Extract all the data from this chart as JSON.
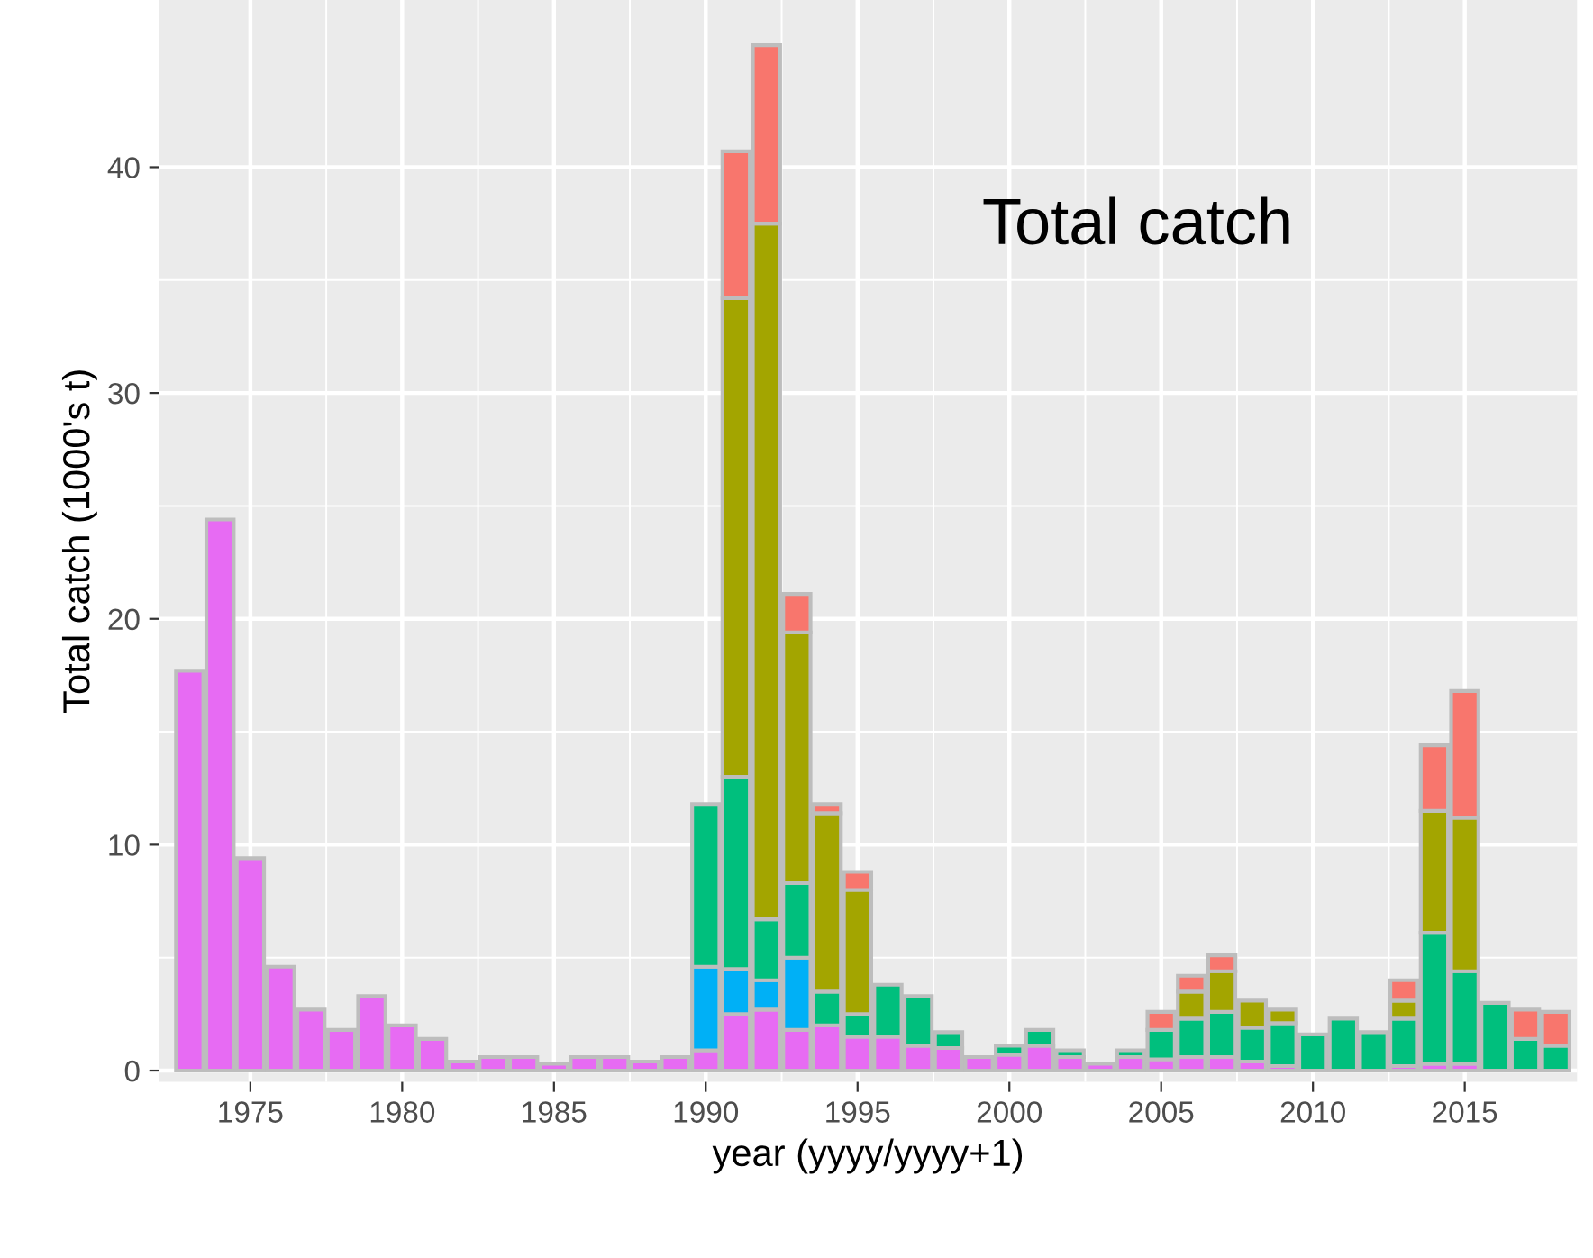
{
  "chart_data": {
    "type": "bar",
    "stacked": true,
    "xlabel": "year (yyyy/yyyy+1)",
    "ylabel": "Total catch (1000's t)",
    "annotations": [
      "Total catch"
    ],
    "x": [
      1973,
      1974,
      1975,
      1976,
      1977,
      1978,
      1979,
      1980,
      1981,
      1982,
      1983,
      1984,
      1985,
      1986,
      1987,
      1988,
      1989,
      1990,
      1991,
      1992,
      1993,
      1994,
      1995,
      1996,
      1997,
      1998,
      1999,
      2000,
      2001,
      2002,
      2003,
      2004,
      2005,
      2006,
      2007,
      2008,
      2009,
      2010,
      2011,
      2012,
      2013,
      2014,
      2015,
      2016,
      2017,
      2018
    ],
    "series": [
      {
        "color": "#e76bf3",
        "values": [
          17.7,
          24.4,
          9.4,
          4.6,
          2.7,
          1.8,
          3.3,
          2.0,
          1.4,
          0.4,
          0.6,
          0.6,
          0.3,
          0.6,
          0.6,
          0.4,
          0.6,
          0.9,
          2.5,
          2.7,
          1.8,
          2.0,
          1.5,
          1.5,
          1.1,
          1.0,
          0.6,
          0.7,
          1.1,
          0.6,
          0.3,
          0.6,
          0.5,
          0.6,
          0.6,
          0.4,
          0.2,
          null,
          null,
          null,
          0.2,
          0.3,
          0.3,
          null,
          null,
          null
        ]
      },
      {
        "color": "#00b0f6",
        "values": [
          null,
          null,
          null,
          null,
          null,
          null,
          null,
          null,
          null,
          null,
          null,
          null,
          null,
          null,
          null,
          null,
          null,
          3.7,
          2.0,
          1.3,
          3.2,
          null,
          null,
          null,
          null,
          null,
          null,
          null,
          null,
          null,
          null,
          null,
          null,
          null,
          null,
          null,
          null,
          null,
          null,
          null,
          null,
          null,
          null,
          null,
          null,
          null
        ]
      },
      {
        "color": "#00bf7d",
        "values": [
          null,
          null,
          null,
          null,
          null,
          null,
          null,
          null,
          null,
          null,
          null,
          null,
          null,
          null,
          null,
          null,
          null,
          7.2,
          8.5,
          2.7,
          3.3,
          1.5,
          1.0,
          2.3,
          2.2,
          0.7,
          null,
          0.4,
          0.7,
          0.3,
          null,
          0.3,
          1.3,
          1.7,
          2.0,
          1.5,
          1.9,
          1.6,
          2.3,
          1.7,
          2.1,
          5.8,
          4.1,
          3.0,
          1.4,
          1.1
        ]
      },
      {
        "color": "#a3a500",
        "values": [
          null,
          null,
          null,
          null,
          null,
          null,
          null,
          null,
          null,
          null,
          null,
          null,
          null,
          null,
          null,
          null,
          null,
          null,
          21.2,
          30.8,
          11.1,
          7.9,
          5.5,
          null,
          null,
          null,
          null,
          null,
          null,
          null,
          null,
          null,
          null,
          1.2,
          1.8,
          1.2,
          0.6,
          null,
          null,
          null,
          0.8,
          5.4,
          6.8,
          null,
          null,
          null
        ]
      },
      {
        "color": "#f8766d",
        "values": [
          null,
          null,
          null,
          null,
          null,
          null,
          null,
          null,
          null,
          null,
          null,
          null,
          null,
          null,
          null,
          null,
          null,
          null,
          6.5,
          7.9,
          1.7,
          0.4,
          0.8,
          null,
          null,
          null,
          null,
          null,
          null,
          null,
          null,
          null,
          0.8,
          0.7,
          0.7,
          null,
          null,
          null,
          null,
          null,
          0.9,
          2.9,
          5.6,
          null,
          1.3,
          1.5
        ]
      }
    ],
    "xlim": [
      1972.0,
      2018.7
    ],
    "xticks": [
      1975,
      1980,
      1985,
      1990,
      1995,
      2000,
      2005,
      2010,
      2015
    ],
    "ylim": [
      -0.5,
      47.4
    ],
    "yticks": [
      0,
      10,
      20,
      30,
      40
    ],
    "grid": true,
    "legend": false
  }
}
